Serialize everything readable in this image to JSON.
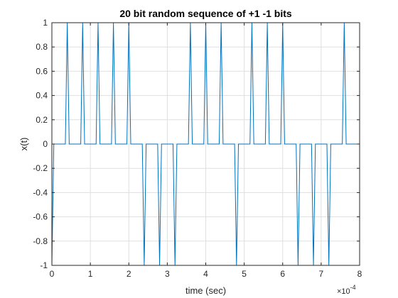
{
  "chart_data": {
    "type": "line",
    "title": "20 bit random sequence of +1 -1 bits",
    "xlabel": "time (sec)",
    "ylabel": "x(t)",
    "x_exponent_base": "×10",
    "x_exponent_power": "-4",
    "xlim": [
      0,
      8
    ],
    "ylim": [
      -1,
      1
    ],
    "x_scale_factor": 0.0001,
    "xticks": [
      0,
      1,
      2,
      3,
      4,
      5,
      6,
      7,
      8
    ],
    "xtick_labels": [
      "0",
      "1",
      "2",
      "3",
      "4",
      "5",
      "6",
      "7",
      "8"
    ],
    "yticks": [
      -1,
      -0.8,
      -0.6,
      -0.4,
      -0.2,
      0,
      0.2,
      0.4,
      0.6,
      0.8,
      1
    ],
    "ytick_labels": [
      "-1",
      "-0.8",
      "-0.6",
      "-0.4",
      "-0.2",
      "0",
      "0.2",
      "0.4",
      "0.6",
      "0.8",
      "1"
    ],
    "grid": true,
    "series": [
      {
        "color": "#0072bd",
        "x": [
          0,
          0.05,
          0.1,
          0.35,
          0.4,
          0.45,
          0.75,
          0.8,
          0.85,
          1.15,
          1.2,
          1.25,
          1.55,
          1.6,
          1.65,
          1.95,
          2.0,
          2.05,
          2.35,
          2.4,
          2.45,
          2.75,
          2.8,
          2.85,
          3.15,
          3.2,
          3.25,
          3.55,
          3.6,
          3.65,
          3.95,
          4.0,
          4.05,
          4.35,
          4.4,
          4.45,
          4.75,
          4.8,
          4.85,
          5.15,
          5.2,
          5.25,
          5.55,
          5.6,
          5.65,
          5.95,
          6.0,
          6.05,
          6.35,
          6.4,
          6.45,
          6.75,
          6.8,
          6.85,
          7.15,
          7.2,
          7.25,
          7.55,
          7.6,
          7.65,
          8.0
        ],
        "y": [
          -1,
          0,
          0,
          0,
          1,
          0,
          0,
          1,
          0,
          0,
          1,
          0,
          0,
          1,
          0,
          0,
          1,
          0,
          0,
          -1,
          0,
          0,
          -1,
          0,
          0,
          -1,
          0,
          0,
          1,
          0,
          0,
          1,
          0,
          0,
          1,
          0,
          0,
          -1,
          0,
          0,
          1,
          0,
          0,
          1,
          0,
          0,
          1,
          0,
          0,
          -1,
          0,
          0,
          -1,
          0,
          0,
          -1,
          0,
          0,
          1,
          0,
          0
        ]
      }
    ],
    "colors": {
      "axis": "#262626",
      "grid": "#dfdfdf",
      "line": "#0072bd"
    }
  }
}
